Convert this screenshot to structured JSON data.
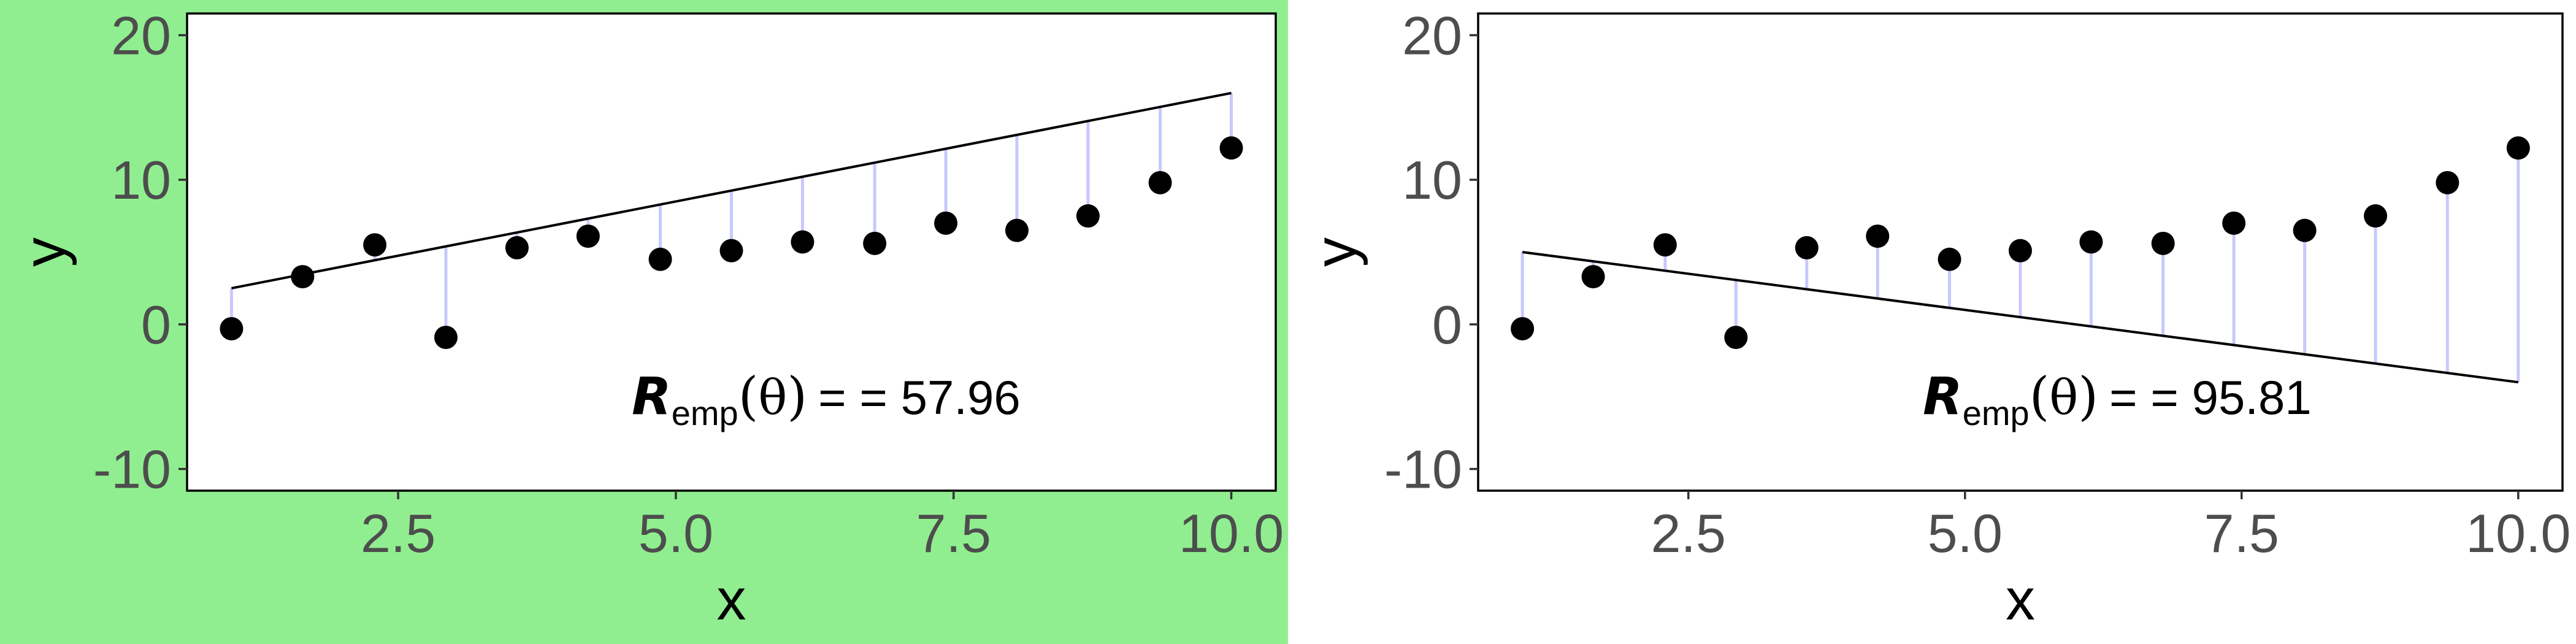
{
  "colors": {
    "highlight": "#90ee90",
    "point": "#000000",
    "residual": "#c8c8ff",
    "fit_line": "#000000",
    "tick_text": "#4d4d4d",
    "panel_border": "#000000"
  },
  "chart_data": [
    {
      "type": "scatter",
      "highlighted": true,
      "xlabel": "x",
      "ylabel": "y",
      "xlim": [
        0.6,
        10.4
      ],
      "ylim": [
        -11.5,
        21.5
      ],
      "xticks": [
        2.5,
        5.0,
        7.5,
        10.0
      ],
      "xtick_labels": [
        "2.5",
        "5.0",
        "7.5",
        "10.0"
      ],
      "yticks": [
        -10,
        0,
        10,
        20
      ],
      "ytick_labels": [
        "-10",
        "0",
        "10",
        "20"
      ],
      "grid": false,
      "x": [
        1.0,
        1.64,
        2.29,
        2.93,
        3.57,
        4.21,
        4.86,
        5.5,
        6.14,
        6.79,
        7.43,
        8.07,
        8.71,
        9.36,
        10.0
      ],
      "y": [
        -0.3,
        3.3,
        5.5,
        -0.9,
        5.3,
        6.1,
        4.5,
        5.1,
        5.7,
        5.6,
        7.0,
        6.5,
        7.5,
        9.8,
        12.2
      ],
      "fit_line": {
        "x": [
          1.0,
          10.0
        ],
        "y": [
          2.5,
          16.0
        ]
      },
      "annotation": {
        "symbol": "R",
        "subscript": "emp",
        "arg": "θ",
        "equals": "=  = 57.96"
      }
    },
    {
      "type": "scatter",
      "highlighted": false,
      "xlabel": "x",
      "ylabel": "y",
      "xlim": [
        0.6,
        10.4
      ],
      "ylim": [
        -11.5,
        21.5
      ],
      "xticks": [
        2.5,
        5.0,
        7.5,
        10.0
      ],
      "xtick_labels": [
        "2.5",
        "5.0",
        "7.5",
        "10.0"
      ],
      "yticks": [
        -10,
        0,
        10,
        20
      ],
      "ytick_labels": [
        "-10",
        "0",
        "10",
        "20"
      ],
      "grid": false,
      "x": [
        1.0,
        1.64,
        2.29,
        2.93,
        3.57,
        4.21,
        4.86,
        5.5,
        6.14,
        6.79,
        7.43,
        8.07,
        8.71,
        9.36,
        10.0
      ],
      "y": [
        -0.3,
        3.3,
        5.5,
        -0.9,
        5.3,
        6.1,
        4.5,
        5.1,
        5.7,
        5.6,
        7.0,
        6.5,
        7.5,
        9.8,
        12.2
      ],
      "fit_line": {
        "x": [
          1.0,
          10.0
        ],
        "y": [
          5.0,
          -4.0
        ]
      },
      "annotation": {
        "symbol": "R",
        "subscript": "emp",
        "arg": "θ",
        "equals": "=  = 95.81"
      }
    }
  ]
}
